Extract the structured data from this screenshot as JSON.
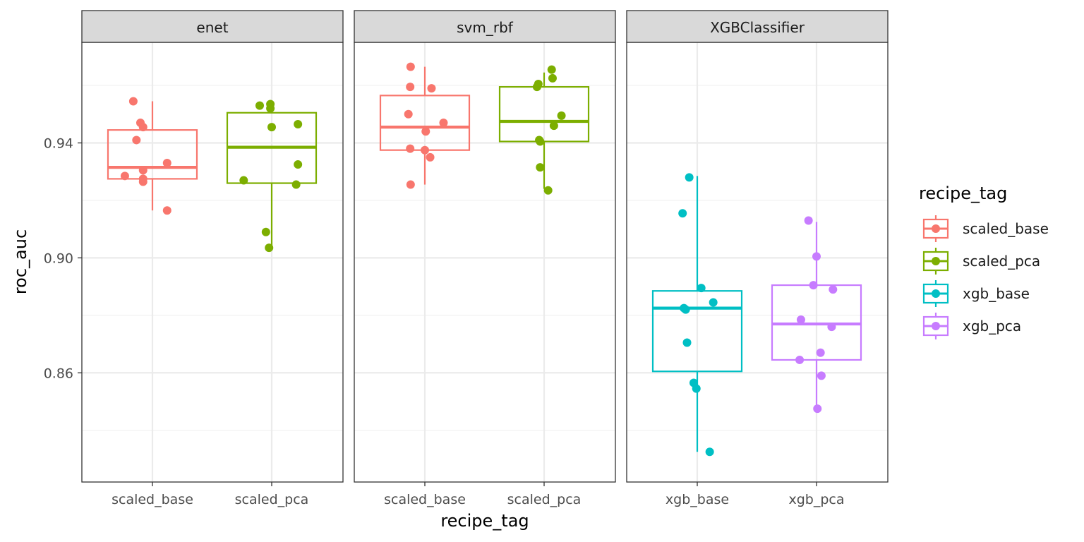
{
  "chart_data": {
    "type": "boxplot",
    "xlabel": "recipe_tag",
    "ylabel": "roc_auc",
    "ylim": [
      0.822,
      0.975
    ],
    "yticks": [
      0.86,
      0.9,
      0.94
    ],
    "ytick_labels": [
      "0.86",
      "0.90",
      "0.94"
    ],
    "grid": true,
    "facets": [
      {
        "label": "enet",
        "groups": [
          {
            "recipe": "scaled_base",
            "median": 0.9315,
            "q1": 0.9275,
            "q3": 0.9445,
            "whisker_low": 0.9165,
            "whisker_high": 0.9545,
            "points": [
              [
                -0.43,
                0.9545
              ],
              [
                -0.27,
                0.947
              ],
              [
                -0.36,
                0.941
              ],
              [
                -0.21,
                0.9455
              ],
              [
                -0.62,
                0.9285
              ],
              [
                -0.21,
                0.9275
              ],
              [
                -0.21,
                0.9265
              ],
              [
                0.33,
                0.933
              ],
              [
                -0.21,
                0.9305
              ],
              [
                0.33,
                0.9165
              ]
            ]
          },
          {
            "recipe": "scaled_pca",
            "median": 0.9385,
            "q1": 0.926,
            "q3": 0.9505,
            "whisker_low": 0.9035,
            "whisker_high": 0.9535,
            "points": [
              [
                -0.27,
                0.953
              ],
              [
                -0.03,
                0.9535
              ],
              [
                -0.03,
                0.952
              ],
              [
                0.0,
                0.9455
              ],
              [
                0.59,
                0.9465
              ],
              [
                0.59,
                0.9325
              ],
              [
                0.55,
                0.9255
              ],
              [
                -0.63,
                0.927
              ],
              [
                -0.13,
                0.909
              ],
              [
                -0.06,
                0.9035
              ]
            ]
          }
        ]
      },
      {
        "label": "svm_rbf",
        "groups": [
          {
            "recipe": "scaled_base",
            "median": 0.9455,
            "q1": 0.9375,
            "q3": 0.9565,
            "whisker_low": 0.9255,
            "whisker_high": 0.9665,
            "points": [
              [
                -0.32,
                0.9665
              ],
              [
                -0.33,
                0.9595
              ],
              [
                0.15,
                0.959
              ],
              [
                -0.37,
                0.95
              ],
              [
                0.42,
                0.947
              ],
              [
                0.02,
                0.944
              ],
              [
                -0.33,
                0.938
              ],
              [
                0.0,
                0.9375
              ],
              [
                0.12,
                0.935
              ],
              [
                -0.32,
                0.9255
              ]
            ]
          },
          {
            "recipe": "scaled_pca",
            "median": 0.9475,
            "q1": 0.9405,
            "q3": 0.9595,
            "whisker_low": 0.924,
            "whisker_high": 0.9645,
            "points": [
              [
                0.17,
                0.9655
              ],
              [
                0.19,
                0.9625
              ],
              [
                -0.13,
                0.9605
              ],
              [
                -0.16,
                0.9595
              ],
              [
                0.39,
                0.9495
              ],
              [
                0.22,
                0.946
              ],
              [
                -0.11,
                0.941
              ],
              [
                -0.09,
                0.9405
              ],
              [
                -0.09,
                0.9315
              ],
              [
                0.09,
                0.9235
              ]
            ]
          }
        ]
      },
      {
        "label": "XGBClassifier",
        "groups": [
          {
            "recipe": "xgb_base",
            "median": 0.8825,
            "q1": 0.8605,
            "q3": 0.8885,
            "whisker_low": 0.8325,
            "whisker_high": 0.9285,
            "points": [
              [
                -0.18,
                0.928
              ],
              [
                -0.33,
                0.9155
              ],
              [
                0.09,
                0.8895
              ],
              [
                0.36,
                0.8845
              ],
              [
                -0.3,
                0.8825
              ],
              [
                -0.26,
                0.882
              ],
              [
                -0.23,
                0.8705
              ],
              [
                -0.08,
                0.8565
              ],
              [
                -0.02,
                0.8545
              ],
              [
                0.28,
                0.8325
              ]
            ]
          },
          {
            "recipe": "xgb_pca",
            "median": 0.877,
            "q1": 0.8645,
            "q3": 0.8905,
            "whisker_low": 0.847,
            "whisker_high": 0.9125,
            "points": [
              [
                -0.18,
                0.913
              ],
              [
                0.0,
                0.9005
              ],
              [
                -0.07,
                0.8905
              ],
              [
                0.37,
                0.889
              ],
              [
                -0.35,
                0.8785
              ],
              [
                0.34,
                0.876
              ],
              [
                -0.38,
                0.8645
              ],
              [
                0.09,
                0.867
              ],
              [
                0.11,
                0.859
              ],
              [
                0.02,
                0.8475
              ]
            ]
          }
        ]
      }
    ],
    "legend": {
      "title": "recipe_tag",
      "position": "right",
      "entries": [
        "scaled_base",
        "scaled_pca",
        "xgb_base",
        "xgb_pca"
      ]
    },
    "colors": {
      "scaled_base": "#F8766D",
      "scaled_pca": "#7CAE00",
      "xgb_base": "#00BFC4",
      "xgb_pca": "#C77CFF"
    }
  }
}
